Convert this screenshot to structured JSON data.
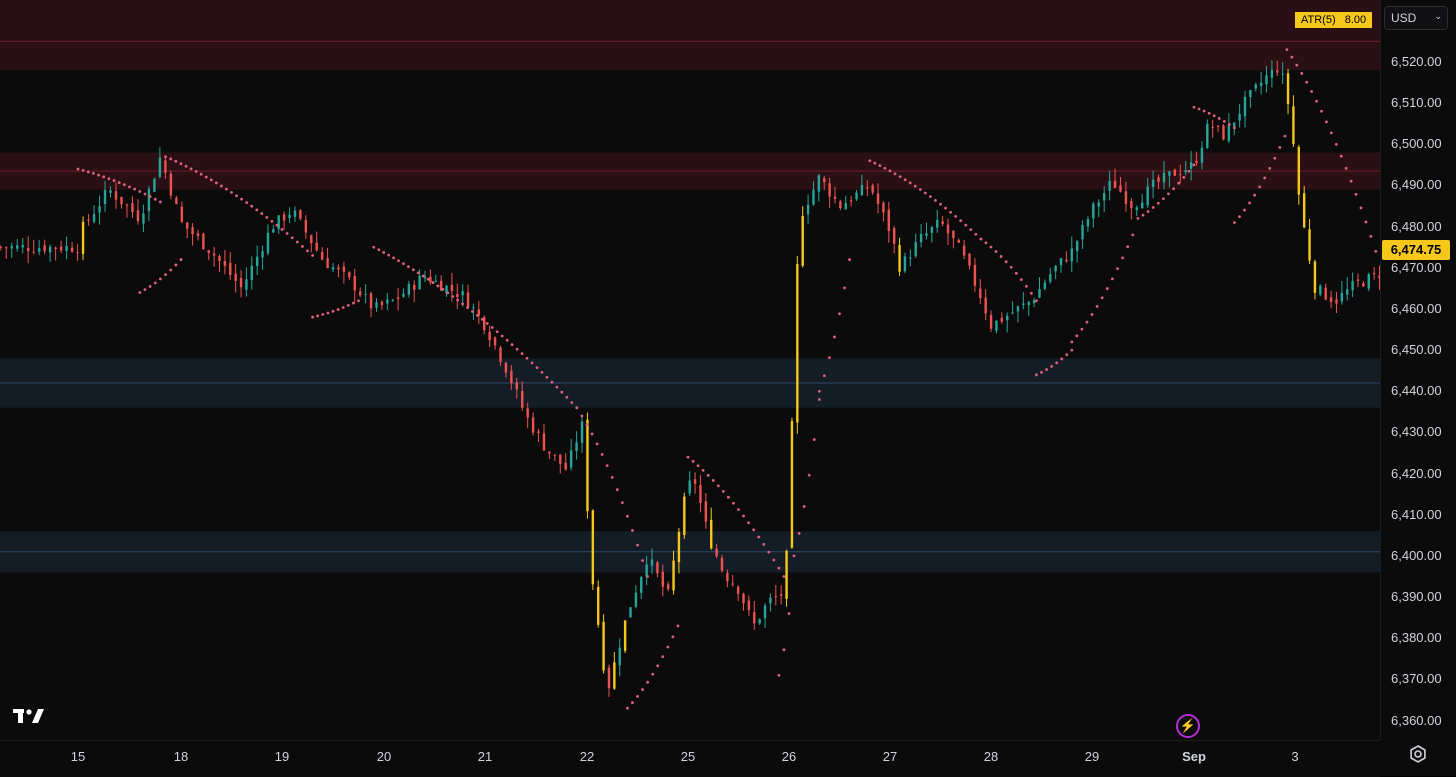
{
  "chart_data": {
    "type": "candlestick",
    "price_axis": {
      "currency": "USD",
      "ylim": [
        6355,
        6532
      ],
      "ticks": [
        "6,520.00",
        "6,510.00",
        "6,500.00",
        "6,490.00",
        "6,480.00",
        "6,470.00",
        "6,460.00",
        "6,450.00",
        "6,440.00",
        "6,430.00",
        "6,420.00",
        "6,410.00",
        "6,400.00",
        "6,390.00",
        "6,380.00",
        "6,370.00",
        "6,360.00"
      ],
      "tick_values": [
        6520,
        6510,
        6500,
        6490,
        6480,
        6470,
        6460,
        6450,
        6440,
        6430,
        6420,
        6410,
        6400,
        6390,
        6380,
        6370,
        6360
      ]
    },
    "time_axis": {
      "labels": [
        "15",
        "18",
        "19",
        "20",
        "21",
        "22",
        "25",
        "26",
        "27",
        "28",
        "29",
        "Sep",
        "3"
      ],
      "bold_label": "Sep"
    },
    "last_price": "6,474.75",
    "indicator": {
      "name": "ATR(5)",
      "value": "8.00"
    },
    "zones": [
      {
        "type": "resistance",
        "low": 6518,
        "high": 6537,
        "mid": 6525
      },
      {
        "type": "resistance",
        "low": 6489,
        "high": 6498,
        "mid": 6493.5
      },
      {
        "type": "support",
        "low": 6436,
        "high": 6448,
        "mid": 6442
      },
      {
        "type": "support",
        "low": 6396,
        "high": 6406,
        "mid": 6401
      }
    ],
    "path": [
      {
        "d": 0.0,
        "p": 6478
      },
      {
        "d": 0.3,
        "p": 6489
      },
      {
        "d": 0.6,
        "p": 6482
      },
      {
        "d": 0.8,
        "p": 6497
      },
      {
        "d": 1.0,
        "p": 6481
      },
      {
        "d": 1.3,
        "p": 6474
      },
      {
        "d": 1.6,
        "p": 6465
      },
      {
        "d": 1.9,
        "p": 6480
      },
      {
        "d": 2.1,
        "p": 6484
      },
      {
        "d": 2.4,
        "p": 6472
      },
      {
        "d": 2.7,
        "p": 6466
      },
      {
        "d": 2.9,
        "p": 6460
      },
      {
        "d": 3.1,
        "p": 6462
      },
      {
        "d": 3.4,
        "p": 6468
      },
      {
        "d": 3.8,
        "p": 6463
      },
      {
        "d": 4.0,
        "p": 6456
      },
      {
        "d": 4.2,
        "p": 6446
      },
      {
        "d": 4.4,
        "p": 6434
      },
      {
        "d": 4.6,
        "p": 6426
      },
      {
        "d": 4.8,
        "p": 6421
      },
      {
        "d": 4.95,
        "p": 6432
      },
      {
        "d": 5.05,
        "p": 6395
      },
      {
        "d": 5.2,
        "p": 6367
      },
      {
        "d": 5.4,
        "p": 6386
      },
      {
        "d": 5.6,
        "p": 6400
      },
      {
        "d": 5.8,
        "p": 6390
      },
      {
        "d": 5.95,
        "p": 6412
      },
      {
        "d": 6.05,
        "p": 6420
      },
      {
        "d": 6.2,
        "p": 6405
      },
      {
        "d": 6.35,
        "p": 6396
      },
      {
        "d": 6.5,
        "p": 6392
      },
      {
        "d": 6.65,
        "p": 6383
      },
      {
        "d": 6.8,
        "p": 6389
      },
      {
        "d": 6.95,
        "p": 6391
      },
      {
        "d": 7.0,
        "p": 6408
      },
      {
        "d": 7.05,
        "p": 6448
      },
      {
        "d": 7.1,
        "p": 6482
      },
      {
        "d": 7.3,
        "p": 6492
      },
      {
        "d": 7.5,
        "p": 6485
      },
      {
        "d": 7.8,
        "p": 6490
      },
      {
        "d": 8.0,
        "p": 6479
      },
      {
        "d": 8.1,
        "p": 6470
      },
      {
        "d": 8.3,
        "p": 6477
      },
      {
        "d": 8.5,
        "p": 6481
      },
      {
        "d": 8.7,
        "p": 6474
      },
      {
        "d": 8.9,
        "p": 6463
      },
      {
        "d": 9.0,
        "p": 6456
      },
      {
        "d": 9.2,
        "p": 6459
      },
      {
        "d": 9.4,
        "p": 6462
      },
      {
        "d": 9.6,
        "p": 6469
      },
      {
        "d": 9.8,
        "p": 6474
      },
      {
        "d": 10.0,
        "p": 6484
      },
      {
        "d": 10.2,
        "p": 6491
      },
      {
        "d": 10.4,
        "p": 6485
      },
      {
        "d": 10.6,
        "p": 6490
      },
      {
        "d": 10.8,
        "p": 6493
      },
      {
        "d": 11.0,
        "p": 6495
      },
      {
        "d": 11.15,
        "p": 6505
      },
      {
        "d": 11.3,
        "p": 6502
      },
      {
        "d": 11.5,
        "p": 6510
      },
      {
        "d": 11.7,
        "p": 6516
      },
      {
        "d": 11.85,
        "p": 6519
      },
      {
        "d": 11.95,
        "p": 6508
      },
      {
        "d": 12.05,
        "p": 6485
      },
      {
        "d": 12.2,
        "p": 6465
      },
      {
        "d": 12.4,
        "p": 6462
      },
      {
        "d": 12.6,
        "p": 6466
      },
      {
        "d": 12.8,
        "p": 6468
      },
      {
        "d": 12.95,
        "p": 6470
      },
      {
        "d": 13.05,
        "p": 6475
      }
    ],
    "candle_count": 260,
    "parabolic_sar": [
      {
        "from": 0.0,
        "to": 0.8,
        "start": 6494,
        "end": 6486
      },
      {
        "from": 0.6,
        "to": 1.0,
        "start": 6464,
        "end": 6472
      },
      {
        "from": 0.85,
        "to": 2.3,
        "start": 6497,
        "end": 6473
      },
      {
        "from": 2.3,
        "to": 2.75,
        "start": 6458,
        "end": 6462
      },
      {
        "from": 2.9,
        "to": 4.9,
        "start": 6475,
        "end": 6436
      },
      {
        "from": 4.9,
        "to": 5.6,
        "start": 6436,
        "end": 6395
      },
      {
        "from": 5.4,
        "to": 5.9,
        "start": 6363,
        "end": 6383
      },
      {
        "from": 6.0,
        "to": 6.95,
        "start": 6424,
        "end": 6395
      },
      {
        "from": 6.9,
        "to": 7.0,
        "start": 6371,
        "end": 6386
      },
      {
        "from": 7.05,
        "to": 7.3,
        "start": 6400,
        "end": 6438
      },
      {
        "from": 7.3,
        "to": 7.6,
        "start": 6440,
        "end": 6472
      },
      {
        "from": 7.8,
        "to": 8.9,
        "start": 6496,
        "end": 6477
      },
      {
        "from": 8.9,
        "to": 9.45,
        "start": 6477,
        "end": 6462
      },
      {
        "from": 9.45,
        "to": 9.8,
        "start": 6444,
        "end": 6450
      },
      {
        "from": 9.8,
        "to": 10.4,
        "start": 6452,
        "end": 6478
      },
      {
        "from": 10.45,
        "to": 11.0,
        "start": 6482,
        "end": 6495
      },
      {
        "from": 11.0,
        "to": 11.4,
        "start": 6509,
        "end": 6504
      },
      {
        "from": 11.4,
        "to": 11.9,
        "start": 6481,
        "end": 6502
      },
      {
        "from": 11.92,
        "to": 12.8,
        "start": 6523,
        "end": 6474
      },
      {
        "from": 12.95,
        "to": 13.05,
        "start": 6455,
        "end": 6457
      }
    ]
  },
  "icons": {
    "logo": "tradingview-logo-icon",
    "flash": "flash-icon",
    "settings": "settings-gear-icon"
  },
  "colors": {
    "background": "#0b0b0c",
    "up": "#26a69a",
    "down": "#ef5350",
    "highlight": "#f7c81c",
    "sar": "#e0607e",
    "resistance_zone": "#2a1015",
    "support_zone": "#141c26"
  }
}
